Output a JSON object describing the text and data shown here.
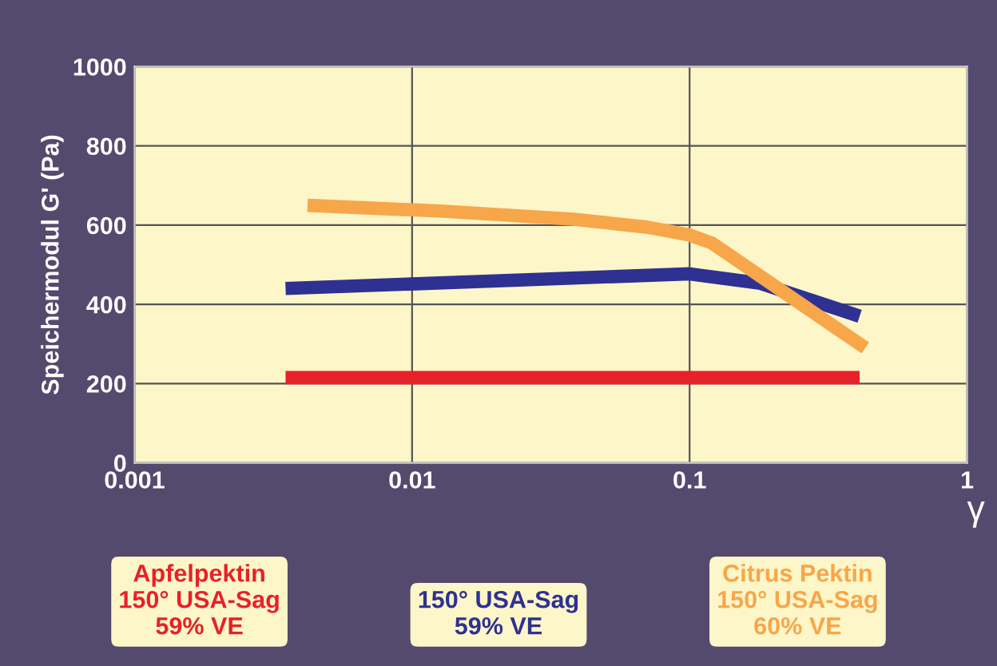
{
  "chart_data": {
    "type": "line",
    "ylabel": "Speichermodul G' (Pa)",
    "xlabel": "γ",
    "log": "x",
    "xlim": [
      0.001,
      1
    ],
    "xticks": [
      0.001,
      0.01,
      0.1,
      1
    ],
    "ylim": [
      0,
      1000
    ],
    "yticks": [
      0,
      200,
      400,
      600,
      800,
      1000
    ],
    "grid": true,
    "legend": "bottom",
    "marker": "none",
    "line_style": "solid",
    "series": [
      {
        "name": "Apfelpektin\n150° USA-Sag\n59% VE",
        "color": "#e8202a",
        "x": [
          0.0035,
          0.41
        ],
        "values": [
          215,
          215
        ]
      },
      {
        "name": "150° USA-Sag\n59% VE",
        "color": "#2e3192",
        "x": [
          0.0035,
          0.1,
          0.18,
          0.41
        ],
        "values": [
          440,
          477,
          453,
          370
        ]
      },
      {
        "name": "Citrus Pektin\n150° USA-Sag\n60% VE",
        "color": "#f7a64a",
        "x": [
          0.0042,
          0.013,
          0.038,
          0.07,
          0.1,
          0.12,
          0.43
        ],
        "values": [
          650,
          635,
          615,
          595,
          575,
          555,
          290
        ]
      }
    ]
  }
}
